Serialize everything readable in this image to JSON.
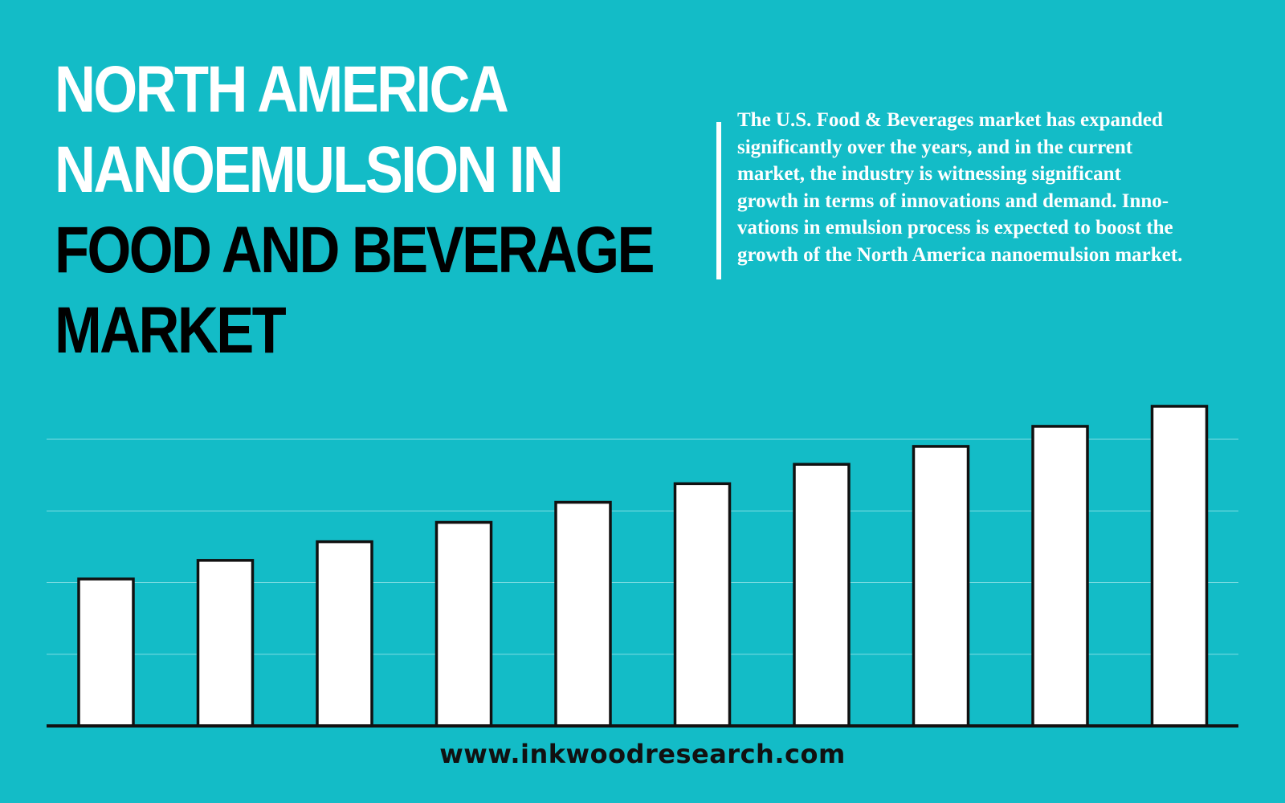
{
  "title": {
    "line1": "NORTH AMERICA",
    "line2": "NANOEMULSION IN",
    "line3": "FOOD AND BEVERAGE",
    "line4": "MARKET"
  },
  "description": {
    "lines": [
      "The U.S. Food & Beverages market has expanded",
      "significantly over the years, and in the current",
      "market, the industry is witnessing significant",
      "growth in terms of innovations and demand. Inno-",
      "vations in emulsion process is expected to boost the",
      "growth of the North America nanoemulsion market."
    ]
  },
  "footer": {
    "website": "www.inkwoodresearch.com"
  },
  "colors": {
    "background": "#13bcc7",
    "bar_fill": "#ffffff",
    "bar_stroke": "#111111",
    "gridline": "#7fdde3"
  },
  "chart_data": {
    "type": "bar",
    "values": [
      20.5,
      23.1,
      25.7,
      28.4,
      31.2,
      33.8,
      36.5,
      39.0,
      41.8,
      44.6
    ],
    "ylim": [
      0,
      50
    ],
    "grid": true,
    "gridlines": [
      10,
      20,
      30,
      40
    ],
    "legend": "none"
  }
}
